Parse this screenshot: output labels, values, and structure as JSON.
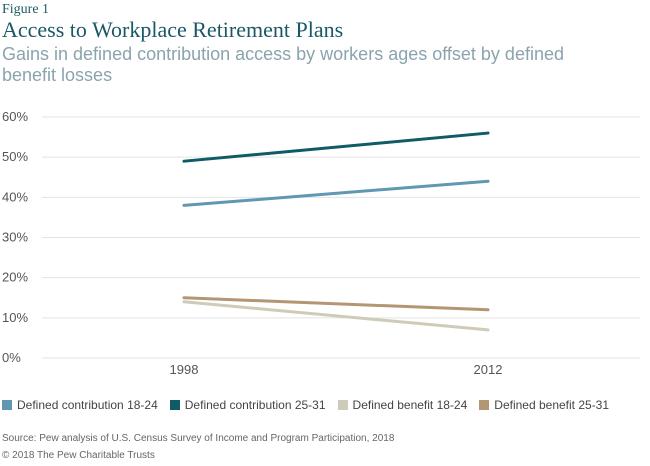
{
  "figure_label": "Figure 1",
  "chart_data": {
    "type": "line",
    "title": "Access to Workplace Retirement Plans",
    "subtitle": "Gains in defined contribution access by workers ages offset by defined benefit losses",
    "x": [
      "1998",
      "2012"
    ],
    "yticks": [
      "0%",
      "10%",
      "20%",
      "30%",
      "40%",
      "50%",
      "60%"
    ],
    "ylim": [
      0,
      60
    ],
    "grid": true,
    "legend_position": "bottom",
    "series": [
      {
        "name": "Defined contribution 18-24",
        "values": [
          38,
          44
        ],
        "color": "#5f98b0"
      },
      {
        "name": "Defined contribution 25-31",
        "values": [
          49,
          56
        ],
        "color": "#0f5b66"
      },
      {
        "name": "Defined benefit 18-24",
        "values": [
          14,
          7
        ],
        "color": "#cfcbb9"
      },
      {
        "name": "Defined benefit 25-31",
        "values": [
          15,
          12
        ],
        "color": "#b39674"
      }
    ]
  },
  "source": "Source: Pew analysis of U.S. Census Survey of Income and Program Participation, 2018",
  "copyright": "© 2018 The Pew Charitable Trusts"
}
